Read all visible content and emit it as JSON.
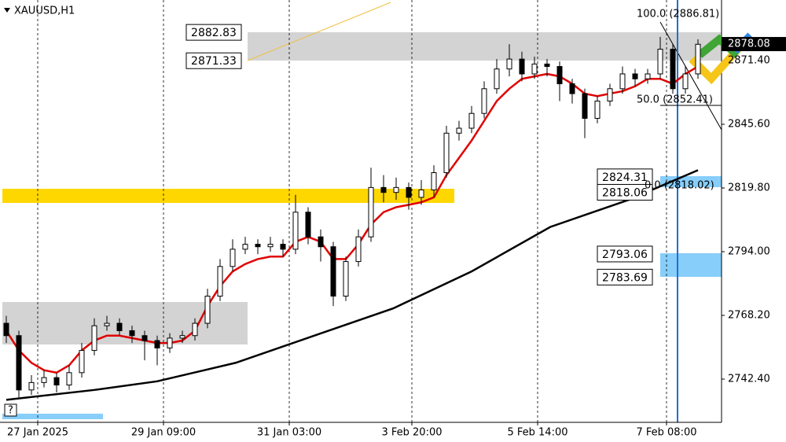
{
  "chart_data": {
    "type": "candlestick",
    "title": "XAUUSD,H1",
    "x": [
      0,
      4,
      8,
      12,
      16,
      20,
      24,
      28,
      32,
      36,
      40,
      44,
      48,
      52,
      56,
      60,
      64,
      68,
      72,
      76,
      80,
      84,
      88,
      92,
      96,
      100,
      104,
      108,
      112,
      116,
      120,
      124,
      128,
      132,
      136,
      140,
      144,
      148,
      152,
      156,
      160,
      164,
      168,
      172,
      176,
      180,
      184,
      188,
      192,
      196,
      200,
      204,
      208,
      212,
      216,
      220
    ],
    "open": [
      2765,
      2760,
      2738,
      2741,
      2743,
      2740,
      2745,
      2754,
      2764,
      2765,
      2762,
      2760,
      2758,
      2755,
      2759,
      2760,
      2765,
      2776,
      2788,
      2795,
      2797,
      2796,
      2797,
      2795,
      2810,
      2800,
      2796,
      2776,
      2790,
      2800,
      2820,
      2818,
      2820,
      2816,
      2819,
      2826,
      2842,
      2844,
      2850,
      2860,
      2868,
      2872,
      2866,
      2870,
      2869,
      2862,
      2858,
      2848,
      2855,
      2860,
      2866,
      2864,
      2866,
      2876,
      2860,
      2866
    ],
    "high": [
      2768,
      2762,
      2744,
      2746,
      2745,
      2748,
      2757,
      2767,
      2768,
      2767,
      2764,
      2762,
      2760,
      2761,
      2762,
      2767,
      2779,
      2791,
      2799,
      2800,
      2799,
      2800,
      2799,
      2817,
      2812,
      2803,
      2798,
      2792,
      2803,
      2828,
      2825,
      2824,
      2822,
      2823,
      2829,
      2845,
      2847,
      2853,
      2863,
      2872,
      2878,
      2875,
      2873,
      2872,
      2871,
      2864,
      2860,
      2857,
      2862,
      2869,
      2868,
      2868,
      2881,
      2878,
      2869,
      2880
    ],
    "low": [
      2757,
      2735,
      2736,
      2739,
      2737,
      2738,
      2743,
      2752,
      2762,
      2760,
      2757,
      2750,
      2748,
      2753,
      2757,
      2758,
      2763,
      2774,
      2786,
      2793,
      2793,
      2794,
      2792,
      2793,
      2797,
      2790,
      2772,
      2774,
      2788,
      2798,
      2814,
      2815,
      2811,
      2813,
      2816,
      2824,
      2839,
      2842,
      2848,
      2858,
      2865,
      2863,
      2864,
      2865,
      2855,
      2854,
      2840,
      2846,
      2853,
      2858,
      2861,
      2862,
      2864,
      2858,
      2858,
      2864
    ],
    "close": [
      2760,
      2738,
      2741,
      2743,
      2740,
      2745,
      2754,
      2764,
      2765,
      2762,
      2760,
      2758,
      2755,
      2759,
      2760,
      2765,
      2776,
      2788,
      2795,
      2797,
      2796,
      2797,
      2795,
      2810,
      2800,
      2796,
      2776,
      2790,
      2800,
      2820,
      2818,
      2820,
      2816,
      2819,
      2826,
      2842,
      2844,
      2850,
      2860,
      2868,
      2872,
      2866,
      2870,
      2869,
      2862,
      2858,
      2848,
      2855,
      2860,
      2866,
      2864,
      2866,
      2876,
      2860,
      2866,
      2878
    ],
    "series": [
      {
        "color": "#e00000",
        "x": [
          0,
          4,
          8,
          12,
          16,
          20,
          24,
          28,
          32,
          36,
          40,
          44,
          48,
          52,
          56,
          60,
          64,
          68,
          72,
          76,
          80,
          84,
          88,
          92,
          96,
          100,
          104,
          108,
          112,
          116,
          120,
          124,
          128,
          132,
          136,
          140,
          144,
          148,
          152,
          156,
          160,
          164,
          168,
          172,
          176,
          180,
          184,
          188,
          192,
          196,
          200,
          204,
          208,
          212,
          216,
          220
        ],
        "values": [
          2762,
          2754,
          2749,
          2746,
          2745,
          2748,
          2754,
          2758,
          2760,
          2760,
          2759,
          2758,
          2757,
          2757,
          2758,
          2762,
          2772,
          2780,
          2786,
          2789,
          2791,
          2792,
          2792,
          2798,
          2800,
          2798,
          2791,
          2791,
          2797,
          2805,
          2810,
          2812,
          2813,
          2814,
          2816,
          2825,
          2832,
          2839,
          2847,
          2855,
          2860,
          2864,
          2865,
          2866,
          2865,
          2862,
          2858,
          2857,
          2858,
          2859,
          2861,
          2864,
          2864,
          2862,
          2866,
          2869
        ]
      },
      {
        "color": "#000000",
        "x": [
          0,
          28,
          48,
          73,
          98,
          123,
          148,
          173,
          198,
          220
        ],
        "values": [
          2734,
          2738,
          2741.5,
          2749,
          2760,
          2771,
          2786,
          2804,
          2815,
          2827
        ]
      }
    ],
    "ylim": [
      2724.88,
      2895.93
    ],
    "xlim": [
      -2,
      227.5
    ],
    "yticks": [
      {
        "value": 2845.6,
        "label": "2845.60"
      },
      {
        "value": 2819.8,
        "label": "2819.80"
      },
      {
        "value": 2794.0,
        "label": "2794.00"
      },
      {
        "value": 2768.2,
        "label": "2768.20"
      },
      {
        "value": 2742.4,
        "label": "2742.40"
      }
    ],
    "xticks": [
      {
        "value": 10,
        "label": "27 Jan 2025"
      },
      {
        "value": 50,
        "label": "29 Jan 09:00"
      },
      {
        "value": 90,
        "label": "31 Jan 03:00"
      },
      {
        "value": 129,
        "label": "3 Feb 20:00"
      },
      {
        "value": 169,
        "label": "5 Feb 14:00"
      },
      {
        "value": 210,
        "label": "7 Feb 08:00"
      }
    ],
    "ytags": [
      {
        "value": 2871.4,
        "label": "2871.40"
      }
    ],
    "last_price": {
      "value": 2878.08,
      "label": "2878.08"
    },
    "price_labels": [
      2882.83,
      2871.33,
      2824.31,
      2818.06,
      2793.06,
      2783.69
    ],
    "fibo_labels": [
      "100.0 (2886.81)",
      "50.0 (2852.41)",
      "0.0 (2818.02)"
    ],
    "help": "?",
    "grid": true
  }
}
